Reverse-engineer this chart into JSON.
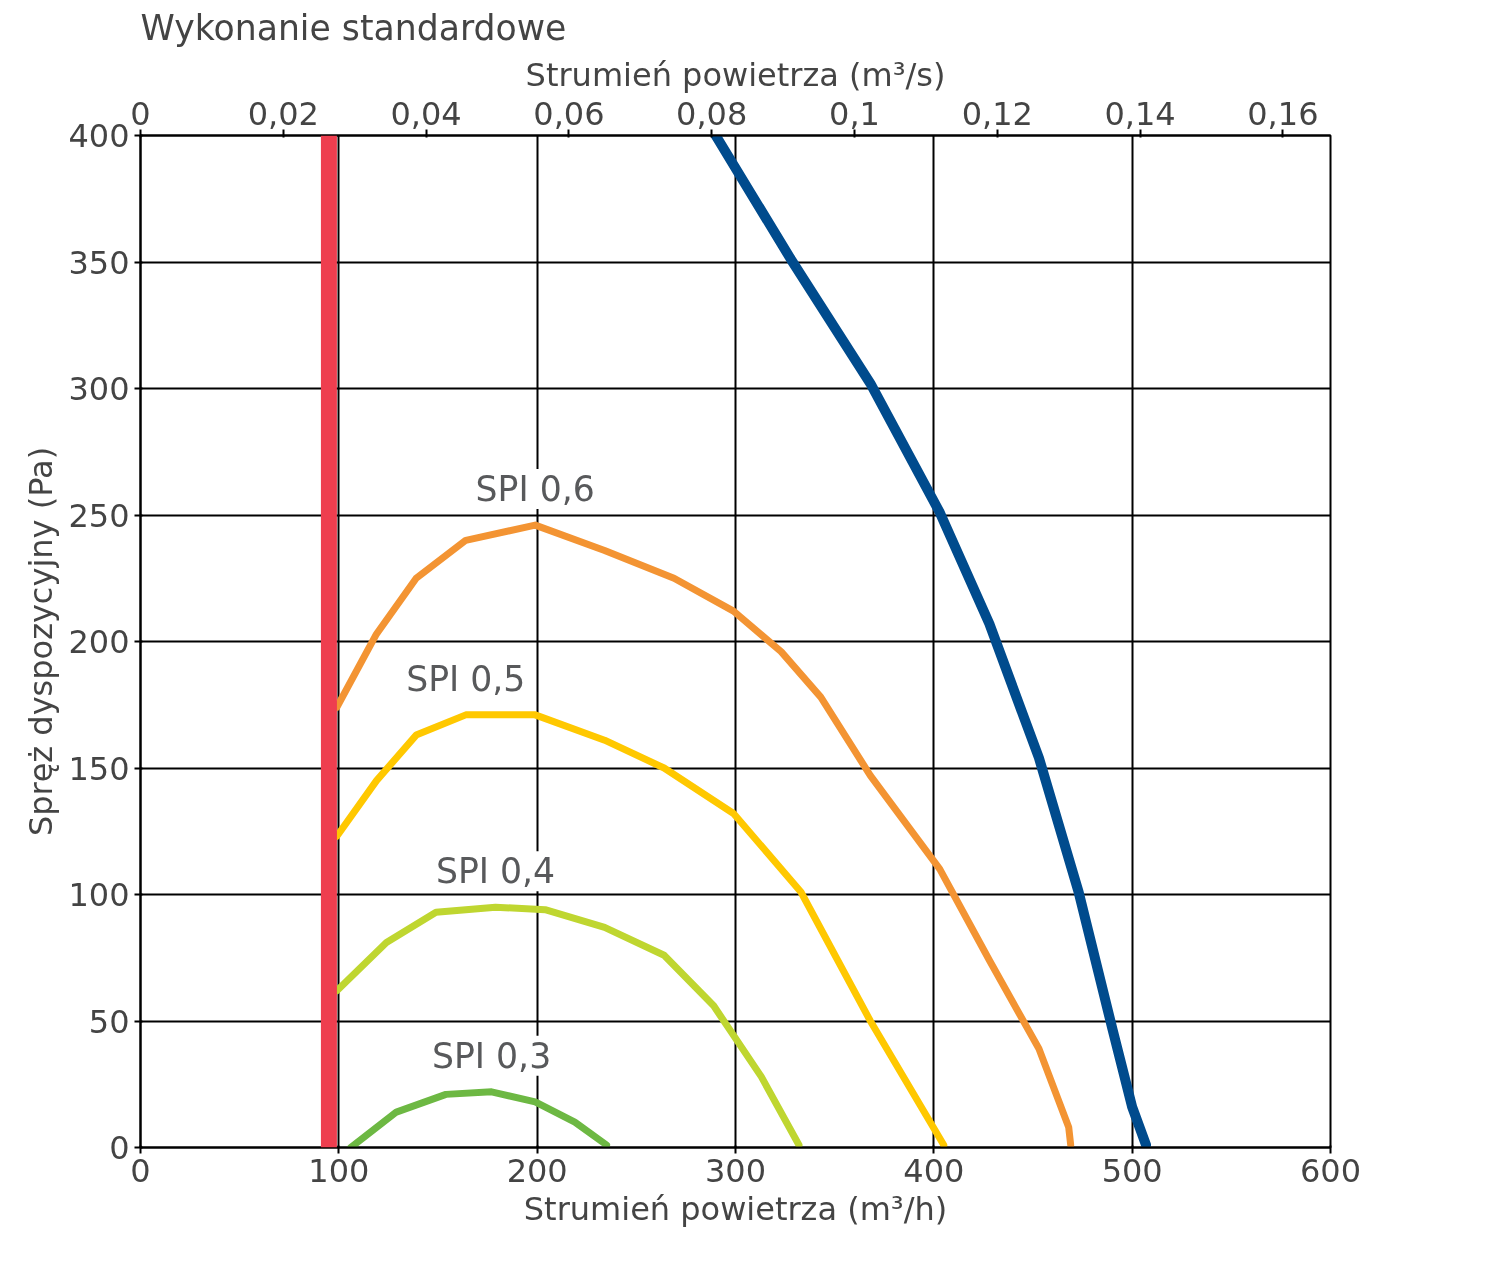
{
  "chart_data": {
    "type": "line",
    "title": "Wykonanie standardowe",
    "xlabel": "Strumień powietrza (m³/h)",
    "x2label": "Strumień powietrza (m³/s)",
    "ylabel": "Spręż dyspozycyjny (Pa)",
    "xlim": [
      0,
      600
    ],
    "xticks": [
      0,
      100,
      200,
      300,
      400,
      500,
      600
    ],
    "x2lim": [
      0,
      0.16667
    ],
    "x2ticks": [
      0,
      {
        "value": 0.02,
        "label": "0,02"
      },
      {
        "value": 0.04,
        "label": "0,04"
      },
      {
        "value": 0.06,
        "label": "0,06"
      },
      {
        "value": 0.08,
        "label": "0,08"
      },
      {
        "value": 0.1,
        "label": "0,1"
      },
      {
        "value": 0.12,
        "label": "0,12"
      },
      {
        "value": 0.14,
        "label": "0,14"
      },
      {
        "value": 0.16,
        "label": "0,16"
      }
    ],
    "ylim": [
      0,
      400
    ],
    "yticks": [
      0,
      50,
      100,
      150,
      200,
      250,
      300,
      350,
      400
    ],
    "grid": true,
    "ref_lines": [
      {
        "axis": "x",
        "value": 95,
        "label": null,
        "color": "#ee3e4f"
      }
    ],
    "series": [
      {
        "color": "#004b8d",
        "x": [
          290,
          328,
          368,
          403,
          428,
          453,
          473,
          490,
          500,
          507
        ],
        "values": [
          400,
          351,
          302,
          251,
          207,
          154,
          101,
          47,
          16,
          1
        ]
      },
      {
        "name": "SPI 0,6",
        "color": "#f39433",
        "x": [
          99,
          119,
          139,
          164,
          199,
          234,
          269,
          299,
          323,
          343,
          368,
          403,
          428,
          453,
          468,
          469
        ],
        "values": [
          174,
          203,
          225,
          240,
          246,
          236,
          225,
          212,
          196,
          178,
          147,
          110,
          74,
          39,
          8,
          1
        ]
      },
      {
        "name": "SPI 0,5",
        "color": "#ffc800",
        "x": [
          99,
          119,
          139,
          164,
          199,
          234,
          264,
          299,
          333,
          368,
          405
        ],
        "values": [
          123,
          145,
          163,
          171,
          171,
          161,
          150,
          132,
          101,
          50,
          1
        ]
      },
      {
        "name": "SPI 0,4",
        "color": "#bfd630",
        "x": [
          99,
          124,
          149,
          179,
          204,
          234,
          264,
          289,
          313,
          332
        ],
        "values": [
          62,
          81,
          93,
          95,
          94,
          87,
          76,
          56,
          28,
          1
        ]
      },
      {
        "name": "SPI 0,3",
        "color": "#6db843",
        "x": [
          106,
          129,
          154,
          177,
          199,
          219,
          235
        ],
        "values": [
          0,
          14,
          21,
          22,
          18,
          10,
          1
        ]
      }
    ]
  }
}
